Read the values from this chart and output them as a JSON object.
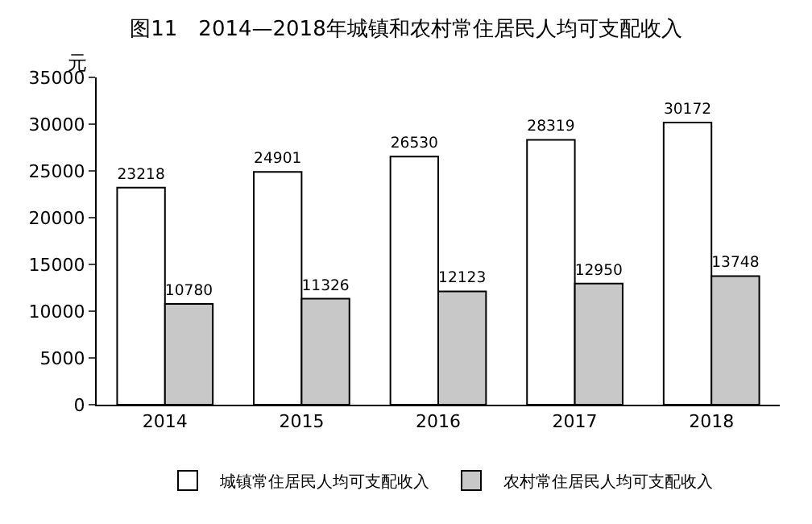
{
  "chart_data": {
    "type": "bar",
    "title": "图11　2014—2018年城镇和农村常住居民人均可支配收入",
    "ylabel": "元",
    "categories": [
      "2014",
      "2015",
      "2016",
      "2017",
      "2018"
    ],
    "series": [
      {
        "name": "城镇常住居民人均可支配收入",
        "color": "#ffffff",
        "values": [
          23218,
          24901,
          26530,
          28319,
          30172
        ]
      },
      {
        "name": "农村常住居民人均可支配收入",
        "color": "#c8c8c8",
        "values": [
          10780,
          11326,
          12123,
          12950,
          13748
        ]
      }
    ],
    "ylim": [
      0,
      35000
    ],
    "yticks": [
      0,
      5000,
      10000,
      15000,
      20000,
      25000,
      30000,
      35000
    ],
    "data_labels": true,
    "grid": false,
    "legend": "bottom"
  }
}
